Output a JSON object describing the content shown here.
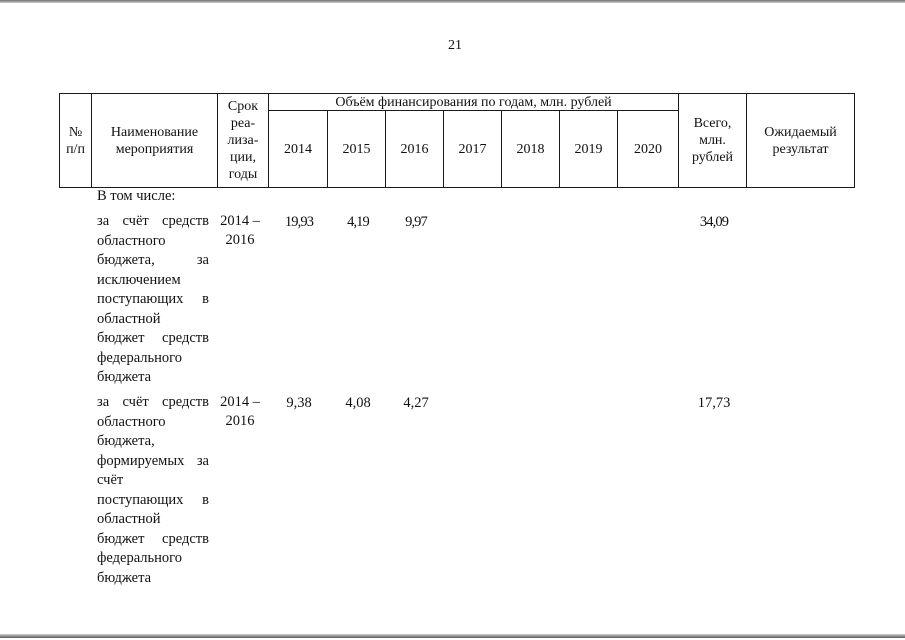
{
  "page_number": "21",
  "table": {
    "headers": {
      "no": "№ п/п",
      "name": "Наименование мероприятия",
      "period": "Срок реа-лиза-ции, годы",
      "funding_group": "Объём финансирования по годам, млн. рублей",
      "years": [
        "2014",
        "2015",
        "2016",
        "2017",
        "2018",
        "2019",
        "2020"
      ],
      "total": "Всего, млн. рублей",
      "result": "Ожидаемый результат"
    },
    "subheader": "В том числе:",
    "rows": [
      {
        "name": "за счёт средств областного бюджета, за исключением поступающих в областной бюджет средств федерального бюджета",
        "period": "2014 – 2016",
        "values": [
          "19,93",
          "4,19",
          "9,97",
          "",
          "",
          "",
          ""
        ],
        "total": "34,09",
        "result": ""
      },
      {
        "name": "за счёт средств областного бюджета, формируемых за счёт поступающих в областной бюджет средств федерального бюджета",
        "period": "2014 – 2016",
        "values": [
          "9,38",
          "4,08",
          "4,27",
          "",
          "",
          "",
          ""
        ],
        "total": "17,73",
        "result": ""
      }
    ]
  }
}
